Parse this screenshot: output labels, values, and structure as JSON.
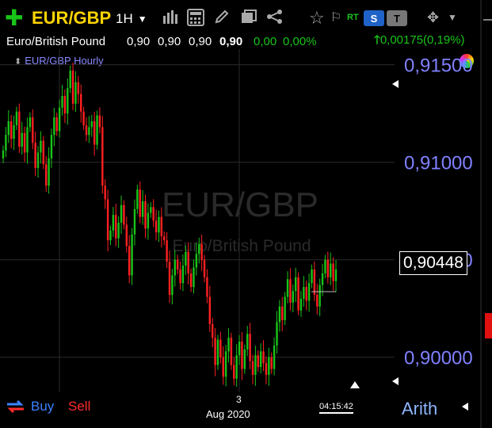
{
  "toolbar": {
    "symbol": "EUR/GBP",
    "timeframe": "1H",
    "rt_label": "RT",
    "s_label": "S",
    "t_label": "T",
    "icons": [
      "add-icon",
      "bar-chart-icon",
      "calculator-icon",
      "pencil-icon",
      "templates-icon",
      "share-icon",
      "star-icon",
      "flag-icon",
      "move-icon",
      "menu-caret-icon"
    ]
  },
  "quote": {
    "name": "Euro/British Pound",
    "open": "0,90",
    "high": "0,90",
    "low": "0,90",
    "last": "0,90",
    "change_abs": "0,00",
    "change_pct": "0,00%",
    "net_change": "0,00175(0,19%)"
  },
  "chart_title": "EUR/GBP Hourly",
  "watermark": {
    "symbol": "EUR/GBP",
    "name": "Euro/British Pound"
  },
  "current_price": "0,90448",
  "footer": {
    "buy": "Buy",
    "sell": "Sell",
    "time": "04:15:42",
    "scale": "Arith"
  },
  "colors": {
    "up": "#19c419",
    "down": "#ff2020",
    "axis_label": "#8080ff",
    "symbol": "#ffd400"
  },
  "chart_data": {
    "type": "candlestick",
    "ylim": [
      0.8982,
      0.9158
    ],
    "y_ticks": [
      {
        "value": 0.915,
        "label": "0,91500"
      },
      {
        "value": 0.91,
        "label": "0,91000"
      },
      {
        "value": 0.905,
        "label": "0,90500"
      },
      {
        "value": 0.9,
        "label": "0,90000"
      }
    ],
    "x_labels": [
      {
        "day": "3",
        "month": "Aug 2020"
      }
    ],
    "closes": [
      0.9106,
      0.9114,
      0.9121,
      0.9112,
      0.9119,
      0.9126,
      0.9108,
      0.9115,
      0.9105,
      0.9118,
      0.9123,
      0.911,
      0.9097,
      0.9105,
      0.9111,
      0.9099,
      0.9088,
      0.9102,
      0.9114,
      0.9123,
      0.9116,
      0.9128,
      0.9134,
      0.9125,
      0.9138,
      0.9147,
      0.913,
      0.9141,
      0.9135,
      0.9126,
      0.9119,
      0.9114,
      0.9118,
      0.9121,
      0.9109,
      0.9124,
      0.9118,
      0.9088,
      0.9081,
      0.906,
      0.9065,
      0.9073,
      0.9061,
      0.9069,
      0.9078,
      0.9068,
      0.9057,
      0.9042,
      0.9063,
      0.9076,
      0.9086,
      0.9072,
      0.908,
      0.9066,
      0.9074,
      0.9077,
      0.907,
      0.9064,
      0.9072,
      0.9062,
      0.906,
      0.9049,
      0.9032,
      0.9042,
      0.905,
      0.9045,
      0.9038,
      0.9047,
      0.9054,
      0.9043,
      0.9036,
      0.9046,
      0.9053,
      0.9058,
      0.905,
      0.9041,
      0.9031,
      0.9017,
      0.901,
      0.8996,
      0.9009,
      0.9,
      0.899,
      0.9003,
      0.901,
      0.8996,
      0.8989,
      0.9001,
      0.9008,
      0.8994,
      0.9004,
      0.9012,
      0.8998,
      0.8991,
      0.9001,
      0.8995,
      0.9003,
      0.8997,
      0.8991,
      0.9,
      0.8994,
      0.9006,
      0.9018,
      0.9026,
      0.9019,
      0.9031,
      0.904,
      0.9028,
      0.9034,
      0.9041,
      0.9024,
      0.903,
      0.9036,
      0.9029,
      0.9038,
      0.9045,
      0.9032,
      0.9026,
      0.9037,
      0.9043,
      0.905,
      0.9041,
      0.9048,
      0.9039,
      0.9045
    ]
  }
}
